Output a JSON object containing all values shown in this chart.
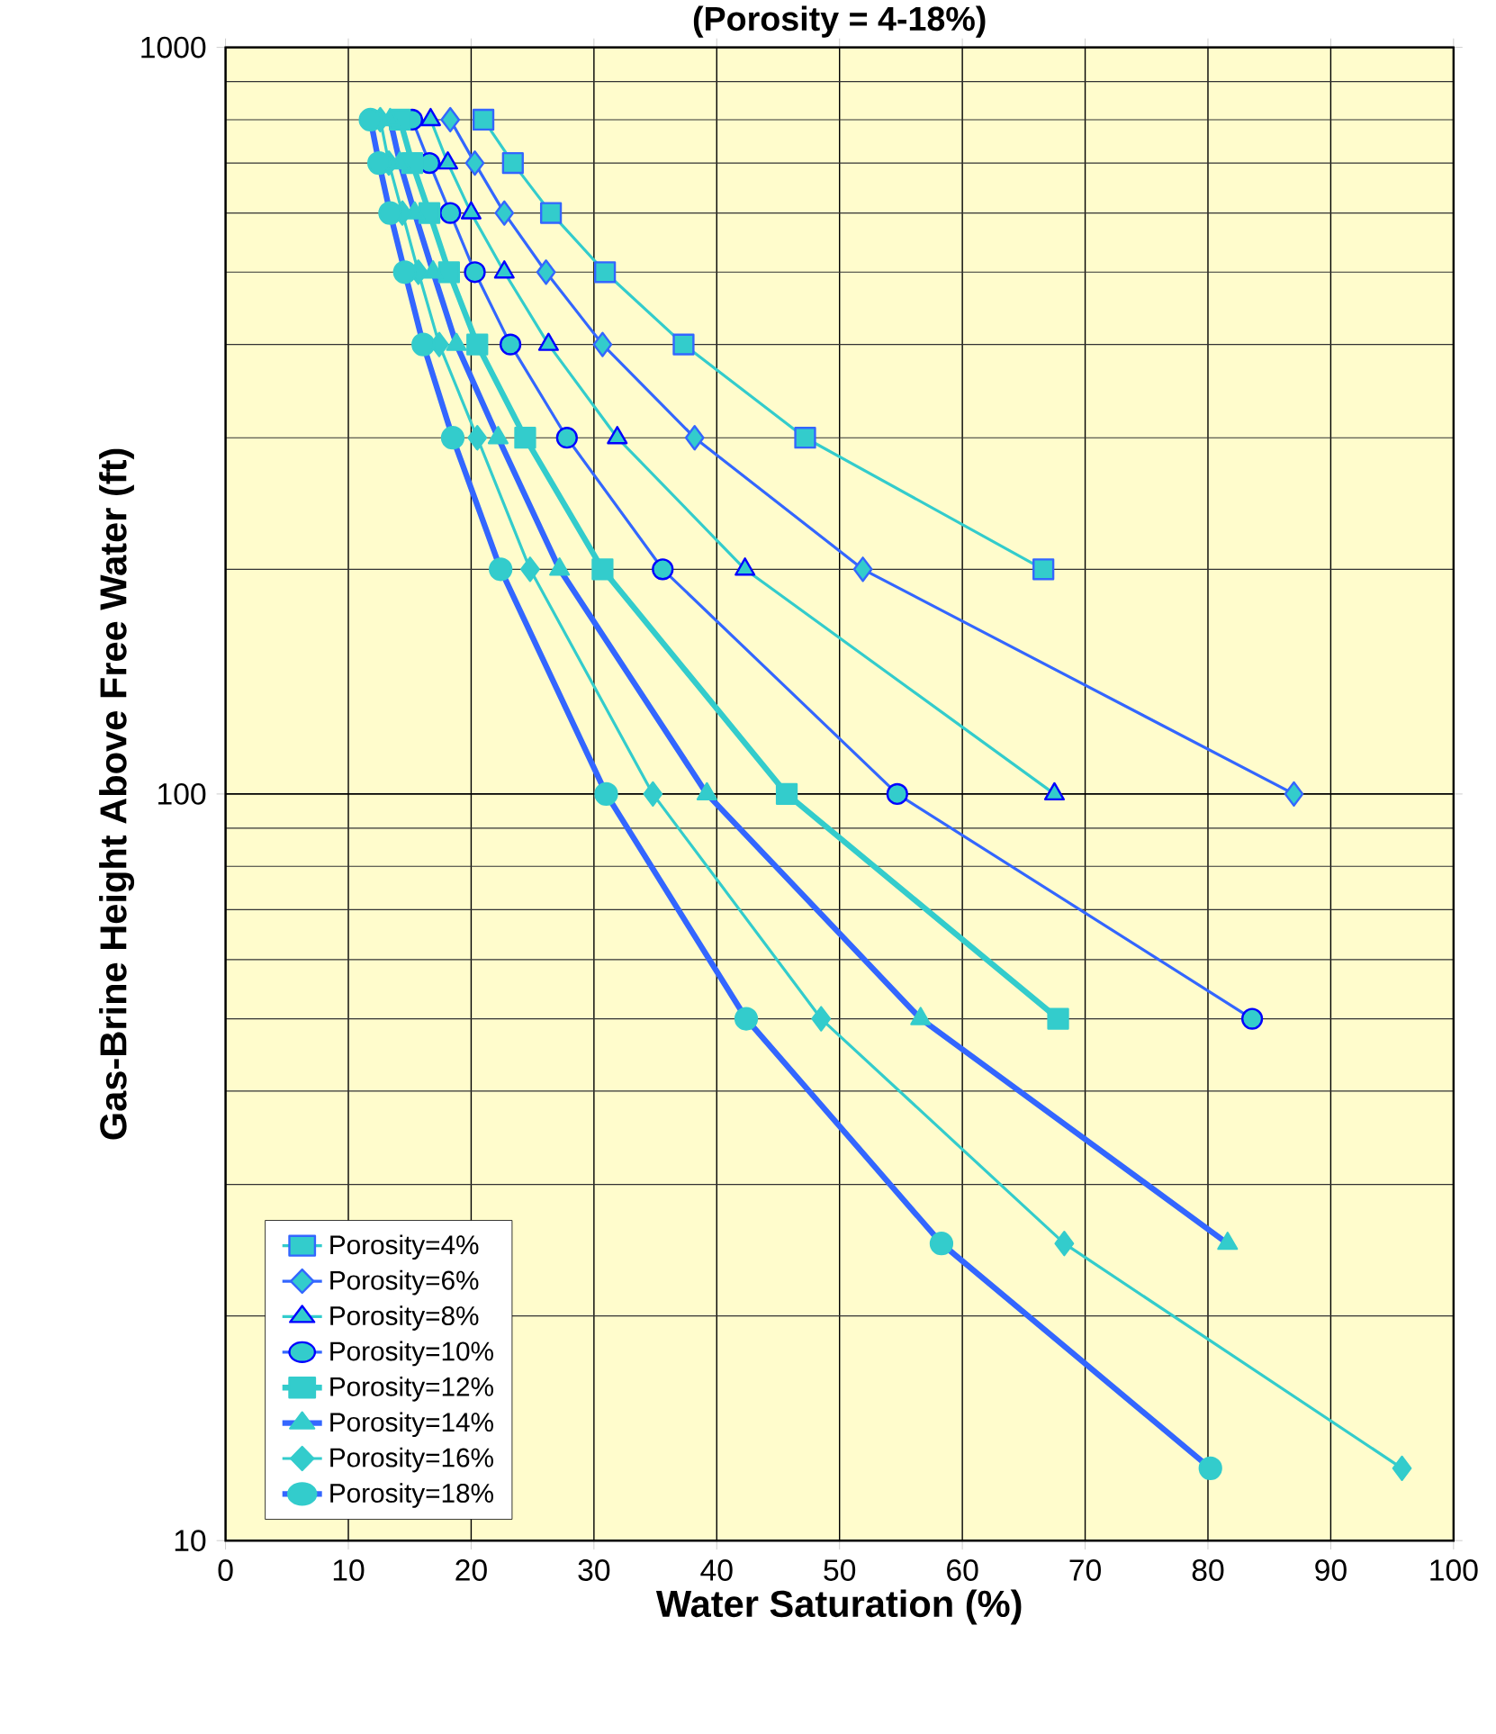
{
  "chart_data": {
    "type": "line",
    "title": "(Porosity = 4-18%)",
    "xlabel": "Water Saturation (%)",
    "ylabel": "Gas-Brine Height Above Free Water (ft)",
    "log": "y",
    "xlim": [
      0,
      100
    ],
    "ylim": [
      10,
      1000
    ],
    "xticks": [
      0,
      10,
      20,
      30,
      40,
      50,
      60,
      70,
      80,
      90,
      100
    ],
    "yticks": [
      10,
      100,
      1000
    ],
    "grid": true,
    "legend": "bottom left",
    "series": [
      {
        "name": "Porosity=4%",
        "color": "#33cccc",
        "marker": "square",
        "x": [
          21.0,
          23.4,
          26.5,
          30.9,
          37.3,
          47.2,
          66.6
        ],
        "values": [
          800,
          700,
          600,
          500,
          400,
          300,
          200
        ]
      },
      {
        "name": "Porosity=6%",
        "color": "#3366ff",
        "marker": "diamond",
        "x": [
          18.3,
          20.3,
          22.7,
          26.1,
          30.7,
          38.2,
          51.9,
          87.0
        ],
        "values": [
          800,
          700,
          600,
          500,
          400,
          300,
          200,
          100
        ]
      },
      {
        "name": "Porosity=8%",
        "color": "#33cccc",
        "marker": "triangle",
        "x": [
          16.7,
          18.1,
          20.0,
          22.7,
          26.3,
          31.9,
          42.3,
          67.5
        ],
        "values": [
          800,
          700,
          600,
          500,
          400,
          300,
          200,
          100
        ]
      },
      {
        "name": "Porosity=10%",
        "color": "#3366ff",
        "marker": "circle",
        "x": [
          15.2,
          16.6,
          18.3,
          20.3,
          23.2,
          27.8,
          35.6,
          54.7,
          83.6
        ],
        "values": [
          800,
          700,
          600,
          500,
          400,
          300,
          200,
          100,
          50
        ]
      },
      {
        "name": "Porosity=12%",
        "color": "#33cccc",
        "marker": "square",
        "x": [
          14.2,
          15.2,
          16.6,
          18.2,
          20.5,
          24.4,
          30.7,
          45.7,
          67.8
        ],
        "values": [
          800,
          700,
          600,
          500,
          400,
          300,
          200,
          100,
          50
        ]
      },
      {
        "name": "Porosity=14%",
        "color": "#3366ff",
        "marker": "triangle",
        "x": [
          13.4,
          14.2,
          15.4,
          16.9,
          18.8,
          22.2,
          27.2,
          39.2,
          56.6,
          81.6
        ],
        "values": [
          800,
          700,
          600,
          500,
          400,
          300,
          200,
          100,
          50,
          25
        ]
      },
      {
        "name": "Porosity=16%",
        "color": "#33cccc",
        "marker": "diamond",
        "x": [
          12.6,
          13.3,
          14.4,
          15.7,
          17.4,
          20.5,
          24.8,
          34.8,
          48.5,
          68.3,
          95.8
        ],
        "values": [
          800,
          700,
          600,
          500,
          400,
          300,
          200,
          100,
          50,
          25,
          12.5
        ]
      },
      {
        "name": "Porosity=18%",
        "color": "#3366ff",
        "marker": "circle",
        "x": [
          11.8,
          12.5,
          13.4,
          14.6,
          16.1,
          18.5,
          22.4,
          31.0,
          42.4,
          58.3,
          80.2
        ],
        "values": [
          800,
          700,
          600,
          500,
          400,
          300,
          200,
          100,
          50,
          25,
          12.5
        ]
      }
    ]
  }
}
